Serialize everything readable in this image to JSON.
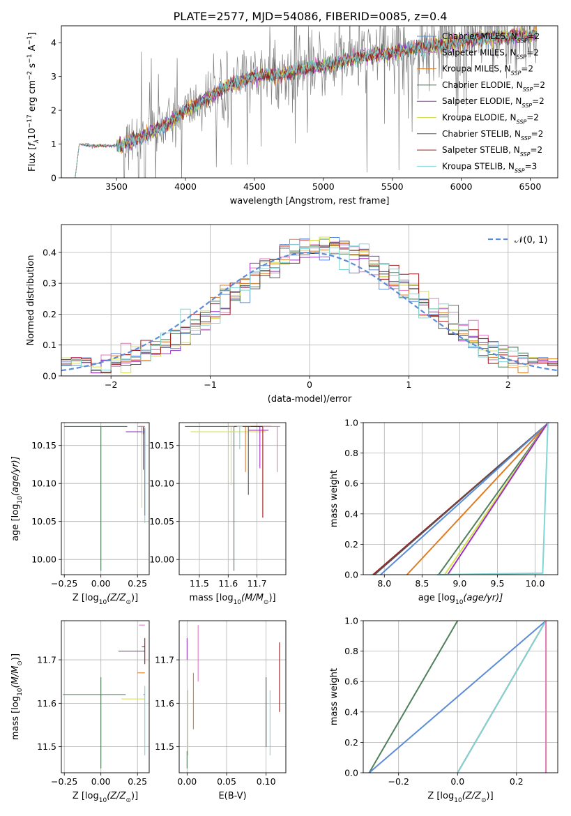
{
  "figure_title": "PLATE=2577, MJD=54086, FIBERID=0085, z=0.4",
  "colors": {
    "chabrier_miles": "#5b8bd6",
    "salpeter_miles": "#e377c2",
    "kroupa_miles": "#e07b22",
    "chabrier_elodie": "#4f7f5b",
    "salpeter_elodie": "#9b30c4",
    "kroupa_elodie": "#d4e04a",
    "chabrier_stelib": "#555555",
    "salpeter_stelib": "#a01818",
    "kroupa_stelib": "#7fd6d6",
    "data": "#808080",
    "grid": "#b0b0b0"
  },
  "chart_data": [
    {
      "id": "spectrum",
      "type": "line",
      "title": "PLATE=2577, MJD=54086, FIBERID=0085, z=0.4",
      "xlabel": "wavelength [Angstrom, rest frame]",
      "ylabel_parts": [
        "Flux [",
        "f",
        "λ",
        "10",
        "−17",
        " erg cm",
        "−2",
        " s",
        "−1",
        " A",
        "−1",
        "]"
      ],
      "xlim": [
        3100,
        6700
      ],
      "ylim": [
        0,
        4.5
      ],
      "xticks": [
        "3500",
        "4000",
        "4500",
        "5000",
        "5500",
        "6000",
        "6500"
      ],
      "yticks": [
        "0",
        "1",
        "2",
        "3",
        "4"
      ],
      "grid": false,
      "legend_position": "top-right",
      "legend": [
        {
          "text": "Chabrier MILES, N",
          "sub": "SSP",
          "tail": "=2",
          "color_key": "chabrier_miles"
        },
        {
          "text": "Salpeter MILES, N",
          "sub": "SSP",
          "tail": "=2",
          "color_key": "salpeter_miles"
        },
        {
          "text": "Kroupa MILES, N",
          "sub": "SSP",
          "tail": "=2",
          "color_key": "kroupa_miles"
        },
        {
          "text": "Chabrier ELODIE, N",
          "sub": "SSP",
          "tail": "=2",
          "color_key": "chabrier_elodie"
        },
        {
          "text": "Salpeter ELODIE, N",
          "sub": "SSP",
          "tail": "=2",
          "color_key": "salpeter_elodie"
        },
        {
          "text": "Kroupa ELODIE, N",
          "sub": "SSP",
          "tail": "=2",
          "color_key": "kroupa_elodie"
        },
        {
          "text": "Chabrier STELIB, N",
          "sub": "SSP",
          "tail": "=2",
          "color_key": "chabrier_stelib"
        },
        {
          "text": "Salpeter STELIB, N",
          "sub": "SSP",
          "tail": "=2",
          "color_key": "salpeter_stelib"
        },
        {
          "text": "Kroupa STELIB, N",
          "sub": "SSP",
          "tail": "=3",
          "color_key": "kroupa_stelib"
        }
      ],
      "data_envelope": {
        "x": [
          3200,
          3230,
          3300,
          3400,
          3500,
          3600,
          3700,
          3800,
          3900,
          4000,
          4100,
          4200,
          4300,
          4400,
          4500,
          4600,
          4700,
          4800,
          4900,
          5000,
          5100,
          5200,
          5300,
          5400,
          5500,
          5600,
          5700,
          5800,
          5900,
          6000,
          6100,
          6200,
          6300,
          6400,
          6550
        ],
        "y": [
          0.0,
          1.0,
          0.95,
          0.95,
          0.95,
          1.05,
          1.25,
          1.45,
          1.7,
          2.0,
          2.2,
          2.45,
          2.7,
          2.85,
          3.0,
          3.05,
          3.05,
          3.15,
          3.25,
          3.3,
          3.4,
          3.5,
          3.6,
          3.65,
          3.7,
          3.8,
          3.85,
          3.9,
          3.95,
          4.05,
          4.1,
          4.15,
          4.15,
          4.2,
          4.25
        ]
      },
      "model_noise_start": 3500,
      "data_noise_start": 3550
    },
    {
      "id": "residuals",
      "type": "step-histogram",
      "xlabel": "(data-model)/error",
      "ylabel": "Normed distribution",
      "xlim": [
        -2.5,
        2.5
      ],
      "ylim": [
        0,
        0.49
      ],
      "xticks": [
        "−2",
        "−1",
        "0",
        "1",
        "2"
      ],
      "yticks": [
        "0.0",
        "0.1",
        "0.2",
        "0.3",
        "0.4"
      ],
      "grid": true,
      "reference_curve": {
        "label": "𝒩(0, 1)",
        "mean": 0,
        "sigma": 1,
        "color_key": "chabrier_miles",
        "dashed": true
      },
      "bin_edges_from": -2.5,
      "bin_width": 0.1,
      "bins": 50
    },
    {
      "id": "age_vs_Z",
      "type": "error-cross",
      "xlabel_parts": [
        "Z [log",
        "10",
        "(Z/Z",
        "⊙",
        ")]"
      ],
      "ylabel_parts": [
        "age  [log",
        "10",
        "(age/yr)]"
      ],
      "xlim": [
        -0.27,
        0.33
      ],
      "ylim": [
        9.98,
        10.18
      ],
      "xticks": [
        "−0.25",
        "0.00",
        "0.25"
      ],
      "yticks": [
        "10.00",
        "10.05",
        "10.10",
        "10.15"
      ],
      "grid": true,
      "points": [
        {
          "color_key": "chabrier_elodie",
          "x": 0.0,
          "xerr": [
            0.25,
            0.18
          ],
          "y": 10.175,
          "yerr": [
            0.19,
            0.0
          ]
        },
        {
          "color_key": "kroupa_elodie",
          "x": 0.28,
          "xerr": [
            0.1,
            0.02
          ],
          "y": 10.168,
          "yerr": [
            0.1,
            0.006
          ]
        },
        {
          "color_key": "salpeter_elodie",
          "x": 0.29,
          "xerr": [
            0.12,
            0.01
          ],
          "y": 10.168,
          "yerr": [
            0.05,
            0.005
          ]
        },
        {
          "color_key": "kroupa_stelib",
          "x": 0.3,
          "xerr": [
            0.02,
            0.0
          ],
          "y": 10.168,
          "yerr": [
            0.12,
            0.006
          ]
        },
        {
          "color_key": "salpeter_stelib",
          "x": 0.29,
          "xerr": [
            0.03,
            0.01
          ],
          "y": 10.175,
          "yerr": [
            0.01,
            0.0
          ]
        },
        {
          "color_key": "salpeter_miles",
          "x": 0.28,
          "xerr": [
            0.03,
            0.02
          ],
          "y": 10.175,
          "yerr": [
            0.01,
            0.0
          ]
        },
        {
          "color_key": "chabrier_miles",
          "x": 0.3,
          "xerr": [
            0.01,
            0.0
          ],
          "y": 10.168,
          "yerr": [
            0.11,
            0.005
          ]
        }
      ]
    },
    {
      "id": "age_vs_mass",
      "type": "error-cross",
      "xlabel_parts": [
        "mass [log",
        "10",
        "(M/M",
        "⊙",
        ")]"
      ],
      "ylabel_parts": [
        "",
        "",
        ""
      ],
      "xlim": [
        11.43,
        11.8
      ],
      "ylim": [
        9.98,
        10.18
      ],
      "xticks": [
        "11.5",
        "11.6",
        "11.7"
      ],
      "yticks": [
        "10.00",
        "10.05",
        "10.10",
        "10.15"
      ],
      "grid": true,
      "points": [
        {
          "color_key": "chabrier_elodie",
          "x": 11.62,
          "xerr": [
            0.17,
            0.13
          ],
          "y": 10.175,
          "yerr": [
            0.19,
            0.0
          ]
        },
        {
          "color_key": "kroupa_elodie",
          "x": 11.61,
          "xerr": [
            0.14,
            0.12
          ],
          "y": 10.168,
          "yerr": [
            0.07,
            0.006
          ]
        },
        {
          "color_key": "kroupa_miles",
          "x": 11.66,
          "xerr": [
            0.06,
            0.04
          ],
          "y": 10.175,
          "yerr": [
            0.06,
            0.0
          ]
        },
        {
          "color_key": "chabrier_stelib",
          "x": 11.67,
          "xerr": [
            0.05,
            0.05
          ],
          "y": 10.175,
          "yerr": [
            0.09,
            0.0
          ]
        },
        {
          "color_key": "salpeter_elodie",
          "x": 11.71,
          "xerr": [
            0.04,
            0.03
          ],
          "y": 10.17,
          "yerr": [
            0.05,
            0.005
          ]
        },
        {
          "color_key": "salpeter_stelib",
          "x": 11.72,
          "xerr": [
            0.04,
            0.03
          ],
          "y": 10.175,
          "yerr": [
            0.12,
            0.0
          ]
        },
        {
          "color_key": "salpeter_miles",
          "x": 11.77,
          "xerr": [
            0.05,
            0.01
          ],
          "y": 10.175,
          "yerr": [
            0.06,
            0.0
          ]
        },
        {
          "color_key": "kroupa_stelib",
          "x": 11.64,
          "xerr": [
            0.01,
            0.01
          ],
          "y": 10.175,
          "yerr": [
            0.03,
            0.0
          ]
        }
      ]
    },
    {
      "id": "weight_vs_age",
      "type": "cumulative-line",
      "xlabel_parts": [
        "age  [log",
        "10",
        "(age/yr)]"
      ],
      "ylabel": "mass weight",
      "xlim": [
        7.72,
        10.3
      ],
      "ylim": [
        0,
        1.0
      ],
      "xticks": [
        "8.0",
        "8.5",
        "9.0",
        "9.5",
        "10.0"
      ],
      "yticks": [
        "0.0",
        "0.2",
        "0.4",
        "0.6",
        "0.8",
        "1.0"
      ],
      "grid": true,
      "series": [
        {
          "color_key": "salpeter_stelib",
          "x": [
            7.85,
            10.18
          ],
          "y": [
            0,
            1
          ]
        },
        {
          "color_key": "chabrier_stelib",
          "x": [
            7.87,
            10.18
          ],
          "y": [
            0,
            1
          ]
        },
        {
          "color_key": "chabrier_miles",
          "x": [
            7.95,
            10.18
          ],
          "y": [
            0,
            1
          ]
        },
        {
          "color_key": "kroupa_miles",
          "x": [
            8.3,
            10.18
          ],
          "y": [
            0,
            1
          ]
        },
        {
          "color_key": "chabrier_elodie",
          "x": [
            8.72,
            10.17
          ],
          "y": [
            0,
            1
          ]
        },
        {
          "color_key": "kroupa_elodie",
          "x": [
            8.8,
            10.17
          ],
          "y": [
            0,
            1
          ]
        },
        {
          "color_key": "salpeter_elodie",
          "x": [
            8.84,
            10.17
          ],
          "y": [
            0,
            1
          ]
        },
        {
          "color_key": "kroupa_stelib",
          "x": [
            8.7,
            10.1,
            10.17
          ],
          "y": [
            0,
            0.01,
            1
          ]
        }
      ]
    },
    {
      "id": "mass_vs_Z",
      "type": "error-cross",
      "xlabel_parts": [
        "Z [log",
        "10",
        "(Z/Z",
        "⊙",
        ")]"
      ],
      "ylabel_parts": [
        "mass [log",
        "10",
        "(M/M",
        "⊙",
        ")]"
      ],
      "xlim": [
        -0.27,
        0.33
      ],
      "ylim": [
        11.44,
        11.79
      ],
      "xticks": [
        "−0.25",
        "0.00",
        "0.25"
      ],
      "yticks": [
        "11.5",
        "11.6",
        "11.7"
      ],
      "grid": true,
      "points": [
        {
          "color_key": "chabrier_elodie",
          "x": 0.0,
          "xerr": [
            0.26,
            0.17
          ],
          "y": 11.62,
          "yerr": [
            0.17,
            0.04
          ]
        },
        {
          "color_key": "kroupa_elodie",
          "x": 0.27,
          "xerr": [
            0.13,
            0.03
          ],
          "y": 11.61,
          "yerr": [
            0.0,
            0.0
          ]
        },
        {
          "color_key": "salpeter_elodie",
          "x": 0.28,
          "xerr": [
            0.16,
            0.02
          ],
          "y": 11.72,
          "yerr": [
            0.0,
            0.0
          ]
        },
        {
          "color_key": "kroupa_miles",
          "x": 0.29,
          "xerr": [
            0.04,
            0.01
          ],
          "y": 11.67,
          "yerr": [
            0.0,
            0.0
          ]
        },
        {
          "color_key": "salpeter_stelib",
          "x": 0.3,
          "xerr": [
            0.02,
            0.0
          ],
          "y": 11.73,
          "yerr": [
            0.04,
            0.02
          ]
        },
        {
          "color_key": "salpeter_miles",
          "x": 0.29,
          "xerr": [
            0.03,
            0.01
          ],
          "y": 11.78,
          "yerr": [
            0.0,
            0.0
          ]
        },
        {
          "color_key": "kroupa_stelib",
          "x": 0.3,
          "xerr": [
            0.0,
            0.0
          ],
          "y": 11.6,
          "yerr": [
            0.12,
            0.04
          ]
        },
        {
          "color_key": "chabrier_miles",
          "x": 0.3,
          "xerr": [
            0.01,
            0.0
          ],
          "y": 11.62,
          "yerr": [
            0.0,
            0.0
          ]
        }
      ]
    },
    {
      "id": "mass_vs_EBV",
      "type": "error-bar",
      "xlabel": "E(B-V)",
      "xlim": [
        -0.01,
        0.125
      ],
      "ylim": [
        11.44,
        11.79
      ],
      "xticks": [
        "0.00",
        "0.05",
        "0.10"
      ],
      "yticks": [
        "11.5",
        "11.6",
        "11.7"
      ],
      "grid": true,
      "points": [
        {
          "color_key": "chabrier_elodie",
          "x": 0.0,
          "ylo": 11.45,
          "yhi": 11.49
        },
        {
          "color_key": "kroupa_elodie",
          "x": 0.001,
          "ylo": 11.48,
          "yhi": 11.63
        },
        {
          "color_key": "salpeter_elodie",
          "x": 0.0,
          "ylo": 11.7,
          "yhi": 11.75
        },
        {
          "color_key": "kroupa_miles",
          "x": 0.008,
          "ylo": 11.54,
          "yhi": 11.67
        },
        {
          "color_key": "salpeter_miles",
          "x": 0.014,
          "ylo": 11.65,
          "yhi": 11.78
        },
        {
          "color_key": "chabrier_stelib",
          "x": 0.1,
          "ylo": 11.5,
          "yhi": 11.66
        },
        {
          "color_key": "kroupa_stelib",
          "x": 0.105,
          "ylo": 11.48,
          "yhi": 11.63
        },
        {
          "color_key": "salpeter_stelib",
          "x": 0.117,
          "ylo": 11.58,
          "yhi": 11.74
        }
      ]
    },
    {
      "id": "weight_vs_Z",
      "type": "cumulative-line",
      "xlabel_parts": [
        "Z [log",
        "10",
        "(Z/Z",
        "⊙",
        ")]"
      ],
      "ylabel": "mass weight",
      "xlim": [
        -0.32,
        0.34
      ],
      "ylim": [
        0,
        1.0
      ],
      "xticks": [
        "−0.2",
        "0.0",
        "0.2"
      ],
      "yticks": [
        "0.0",
        "0.2",
        "0.4",
        "0.6",
        "0.8",
        "1.0"
      ],
      "grid": true,
      "series": [
        {
          "color_key": "chabrier_elodie",
          "x": [
            -0.3,
            0.0
          ],
          "y": [
            0,
            1
          ]
        },
        {
          "color_key": "chabrier_miles",
          "x": [
            -0.3,
            0.3
          ],
          "y": [
            0,
            1
          ]
        },
        {
          "color_key": "salpeter_stelib",
          "x": [
            0.0,
            0.3
          ],
          "y": [
            0,
            1
          ]
        },
        {
          "color_key": "kroupa_stelib",
          "x": [
            0.0,
            0.3
          ],
          "y": [
            0,
            1
          ]
        },
        {
          "color_key": "kroupa_elodie",
          "x": [
            0.3,
            0.3
          ],
          "y": [
            0,
            1
          ]
        },
        {
          "color_key": "salpeter_miles",
          "x": [
            0.3,
            0.3
          ],
          "y": [
            0,
            1
          ]
        }
      ]
    }
  ]
}
